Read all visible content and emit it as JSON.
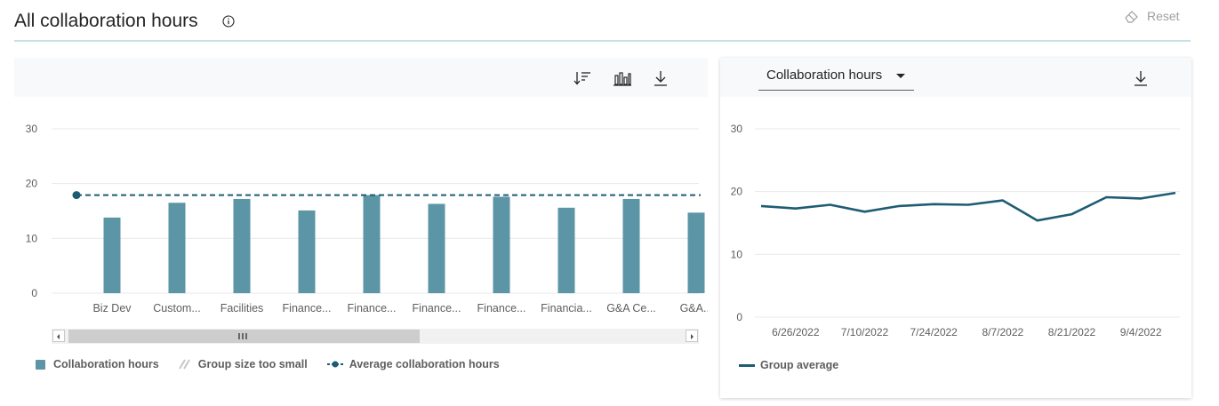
{
  "header": {
    "title": "All collaboration hours",
    "reset_label": "Reset"
  },
  "left_chart": {
    "toolbar": [
      "sort-icon",
      "bar-chart-icon",
      "download-icon"
    ],
    "legend": {
      "collab": "Collaboration hours",
      "small": "Group size too small",
      "avg": "Average collaboration hours"
    }
  },
  "right_chart": {
    "dropdown_value": "Collaboration hours",
    "legend": {
      "group": "Group average"
    }
  },
  "colors": {
    "bar": "#5b95a6",
    "line": "#1e5c74",
    "grid": "#e8e8e8"
  },
  "chart_data": [
    {
      "type": "bar",
      "categories": [
        "Biz Dev",
        "Custom...",
        "Facilities",
        "Finance...",
        "Finance...",
        "Finance...",
        "Finance...",
        "Financia...",
        "G&A Ce...",
        "G&A..."
      ],
      "series": [
        {
          "name": "Collaboration hours",
          "values": [
            13.8,
            16.5,
            17.2,
            15.1,
            17.9,
            16.3,
            17.6,
            15.6,
            17.2,
            14.7
          ]
        },
        {
          "name": "Average collaboration hours",
          "type": "line",
          "values": [
            17.9,
            17.9,
            17.9,
            17.9,
            17.9,
            17.9,
            17.9,
            17.9,
            17.9,
            17.9
          ]
        }
      ],
      "yticks": [
        0,
        10,
        20,
        30
      ],
      "ylim": [
        0,
        30
      ],
      "grid": true,
      "legend_position": "bottom-left"
    },
    {
      "type": "line",
      "x": [
        "6/19/2022",
        "6/26/2022",
        "7/3/2022",
        "7/10/2022",
        "7/17/2022",
        "7/24/2022",
        "7/31/2022",
        "8/7/2022",
        "8/14/2022",
        "8/21/2022",
        "8/28/2022",
        "9/4/2022",
        "9/11/2022"
      ],
      "xtick_labels": [
        "6/26/2022",
        "7/10/2022",
        "7/24/2022",
        "8/7/2022",
        "8/21/2022",
        "9/4/2022"
      ],
      "series": [
        {
          "name": "Group average",
          "values": [
            17.7,
            17.3,
            17.9,
            16.8,
            17.7,
            18.0,
            17.9,
            18.6,
            15.4,
            16.4,
            19.1,
            18.9,
            19.8
          ]
        }
      ],
      "yticks": [
        0,
        10,
        20,
        30
      ],
      "ylim": [
        0,
        30
      ],
      "grid": true,
      "legend_position": "bottom-left"
    }
  ]
}
